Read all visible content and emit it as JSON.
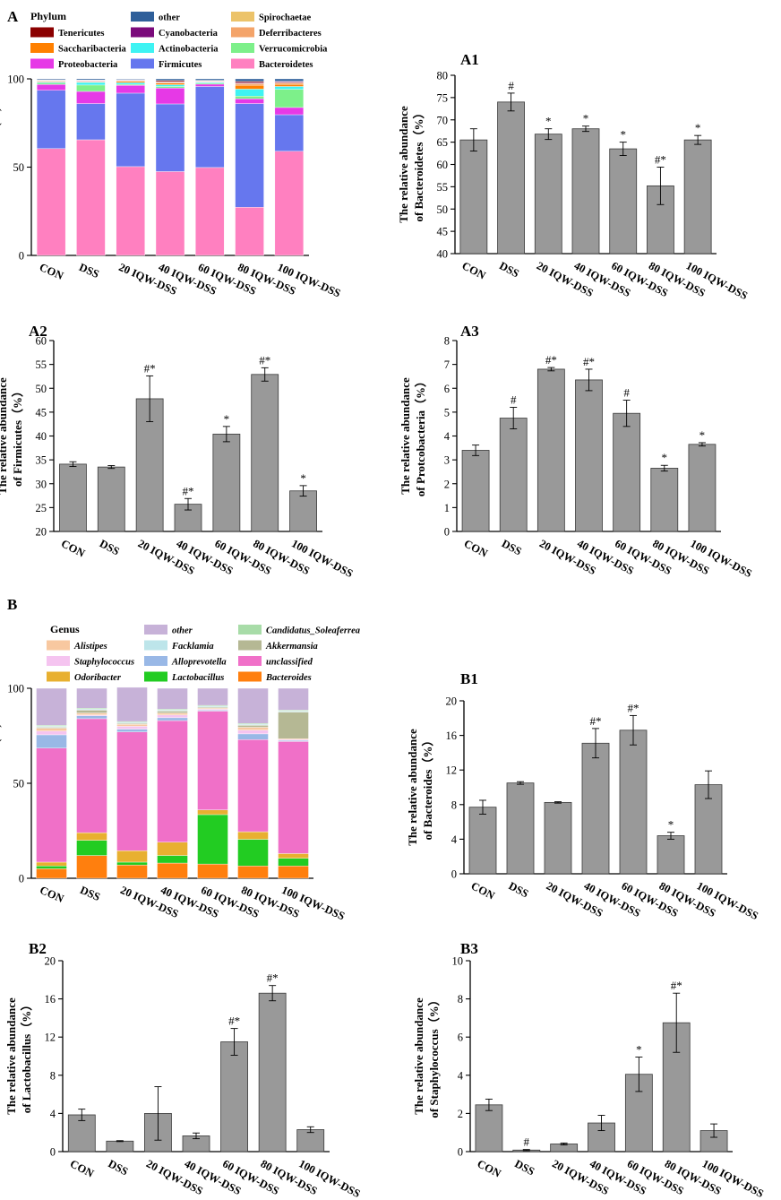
{
  "figure": {
    "panel_labels": {
      "A": "A",
      "B": "B"
    },
    "legend_titles": {
      "phylum": "Phylum",
      "genus": "Genus"
    }
  },
  "chart_data": [
    {
      "id": "A",
      "type": "bar",
      "stacked": true,
      "title": "",
      "ylabel": "Rclative Abundance(%)",
      "xlabel": "",
      "ylim": [
        0,
        100
      ],
      "yticks": [
        "0",
        "50",
        "100"
      ],
      "categories": [
        "CON",
        "DSS",
        "20 IQW-DSS",
        "40 IQW-DSS",
        "60 IQW-DSS",
        "80 IQW-DSS",
        "100 IQW-DSS"
      ],
      "legend_title": "Phylum",
      "legend_order": [
        "Tenericutes",
        "Saccharibacteria",
        "Proteobacteria",
        "other",
        "Cyanobacteria",
        "Actinobacteria",
        "Firmicutes",
        "Spirochaetae",
        "Deferribacteres",
        "Verrucomicrobia",
        "Bacteroidetes"
      ],
      "series": [
        {
          "name": "Bacteroidetes",
          "color": "#ff80c0",
          "values": [
            60.5,
            65.5,
            50.3,
            47.5,
            49.8,
            27.3,
            59.0
          ]
        },
        {
          "name": "Firmicutes",
          "color": "#6677ee",
          "values": [
            33.0,
            20.5,
            41.6,
            38.3,
            45.9,
            58.7,
            20.7
          ]
        },
        {
          "name": "Proteobacteria",
          "color": "#e639e6",
          "values": [
            3.3,
            6.9,
            4.4,
            9.0,
            1.3,
            2.7,
            4.1
          ]
        },
        {
          "name": "Verrucomicrobia",
          "color": "#7df08a",
          "values": [
            0.8,
            3.6,
            0.6,
            0.9,
            0.6,
            1.5,
            10.3
          ]
        },
        {
          "name": "Actinobacteria",
          "color": "#3ef3f3",
          "values": [
            0.6,
            1.5,
            1.0,
            1.0,
            0.5,
            4.0,
            1.6
          ]
        },
        {
          "name": "Saccharibacteria",
          "color": "#ff8000",
          "values": [
            0.4,
            0.3,
            0.7,
            1.0,
            0.3,
            2.2,
            1.2
          ]
        },
        {
          "name": "Deferribacteres",
          "color": "#f4a46a",
          "values": [
            0.3,
            0.4,
            0.4,
            0.3,
            0.3,
            1.0,
            0.9
          ]
        },
        {
          "name": "Cyanobacteria",
          "color": "#7b0a7b",
          "values": [
            0.3,
            0.3,
            0.3,
            0.3,
            0.2,
            0.4,
            0.5
          ]
        },
        {
          "name": "Tenericutes",
          "color": "#8b0000",
          "values": [
            0.2,
            0.2,
            0.2,
            0.7,
            0.2,
            0.7,
            0.3
          ]
        },
        {
          "name": "Spirochaetae",
          "color": "#ecc36a",
          "values": [
            0.1,
            0.2,
            0.1,
            0.1,
            0.1,
            0.1,
            0.1
          ]
        },
        {
          "name": "other",
          "color": "#2f5f9a",
          "values": [
            0.5,
            0.6,
            0.4,
            0.9,
            0.8,
            1.4,
            1.3
          ]
        }
      ]
    },
    {
      "id": "A1",
      "type": "bar",
      "title": "A1",
      "ylabel": [
        "The relative abundance",
        "of Bacteroidetes（%）"
      ],
      "ylim": [
        40,
        80
      ],
      "yticks": [
        "40",
        "45",
        "50",
        "55",
        "60",
        "65",
        "70",
        "75",
        "80"
      ],
      "categories": [
        "CON",
        "DSS",
        "20 IQW-DSS",
        "40 IQW-DSS",
        "60 IQW-DSS",
        "80 IQW-DSS",
        "100 IQW-DSS"
      ],
      "values": [
        65.5,
        74.0,
        66.8,
        68.0,
        63.5,
        55.2,
        65.5
      ],
      "errors": [
        2.5,
        2.0,
        1.2,
        0.6,
        1.5,
        4.2,
        1.0
      ],
      "annotations": [
        "",
        "#",
        "*",
        "*",
        "*",
        "#*",
        "*"
      ]
    },
    {
      "id": "A2",
      "type": "bar",
      "title": "A2",
      "ylabel": [
        "The relative abundance",
        "of Firmicutes（%）"
      ],
      "ylim": [
        20,
        60
      ],
      "yticks": [
        "20",
        "25",
        "30",
        "35",
        "40",
        "45",
        "50",
        "55",
        "60"
      ],
      "categories": [
        "CON",
        "DSS",
        "20 IQW-DSS",
        "40 IQW-DSS",
        "60 IQW-DSS",
        "80 IQW-DSS",
        "100 IQW-DSS"
      ],
      "values": [
        34.1,
        33.5,
        47.8,
        25.7,
        40.4,
        52.9,
        28.5
      ],
      "errors": [
        0.5,
        0.3,
        4.8,
        1.2,
        1.6,
        1.4,
        1.1
      ],
      "annotations": [
        "",
        "",
        "#*",
        "#*",
        "*",
        "#*",
        "*"
      ]
    },
    {
      "id": "A3",
      "type": "bar",
      "title": "A3",
      "ylabel": [
        "The relative abundance",
        "of Protcobacteria（%）"
      ],
      "ylim": [
        0,
        8
      ],
      "yticks": [
        "0",
        "1",
        "2",
        "3",
        "4",
        "5",
        "6",
        "7",
        "8"
      ],
      "categories": [
        "CON",
        "DSS",
        "20 IQW-DSS",
        "40 IQW-DSS",
        "60 IQW-DSS",
        "80 IQW-DSS",
        "100 IQW-DSS"
      ],
      "values": [
        3.4,
        4.75,
        6.8,
        6.35,
        4.95,
        2.65,
        3.65
      ],
      "errors": [
        0.22,
        0.45,
        0.07,
        0.45,
        0.55,
        0.12,
        0.07
      ],
      "annotations": [
        "",
        "#",
        "#*",
        "#*",
        "#",
        "*",
        "*"
      ]
    },
    {
      "id": "B",
      "type": "bar",
      "stacked": true,
      "title": "",
      "ylabel": "Relative Abundance(%)",
      "xlabel": "",
      "ylim": [
        0,
        100
      ],
      "yticks": [
        "0",
        "50",
        "100"
      ],
      "categories": [
        "CON",
        "DSS",
        "20 IQW-DSS",
        "40 IQW-DSS",
        "60 IQW-DSS",
        "80 IQW-DSS",
        "100 IQW-DSS"
      ],
      "legend_title": "Genus",
      "legend_order": [
        "Alistipes",
        "Staphylococcus",
        "Odoribacter",
        "other",
        "Facklamia",
        "Alloprevotella",
        "Lactobacillus",
        "Candidatus_Soleaferrea",
        "Akkermansia",
        "unclassified",
        "Bacteroides"
      ],
      "legend_italic": [
        "Alistipes",
        "Staphylococcus",
        "Odoribacter",
        "other",
        "Facklamia",
        "Alloprevotella",
        "Lactobacillus",
        "Candidatus_Soleaferrea",
        "Akkermansia",
        "unclassified",
        "Bacteroides"
      ],
      "series": [
        {
          "name": "Bacteroides",
          "color": "#ff7f0e",
          "values": [
            5.0,
            12.0,
            7.0,
            8.0,
            7.5,
            6.5,
            6.5
          ]
        },
        {
          "name": "Lactobacillus",
          "color": "#22cc22",
          "values": [
            1.5,
            8.0,
            1.5,
            4.0,
            26.0,
            14.0,
            4.0
          ]
        },
        {
          "name": "Odoribacter",
          "color": "#e8b030",
          "values": [
            2.0,
            4.0,
            6.0,
            7.0,
            2.5,
            4.0,
            2.5
          ]
        },
        {
          "name": "unclassified",
          "color": "#f070c8",
          "values": [
            60.0,
            60.0,
            62.5,
            64.0,
            52.0,
            48.5,
            59.0
          ]
        },
        {
          "name": "Alloprevotella",
          "color": "#99b8e6",
          "values": [
            7.0,
            1.5,
            1.5,
            1.5,
            0.5,
            3.0,
            0.5
          ]
        },
        {
          "name": "Staphylococcus",
          "color": "#f5c4f0",
          "values": [
            2.0,
            0.5,
            1.5,
            1.5,
            0.5,
            2.0,
            0.5
          ]
        },
        {
          "name": "Alistipes",
          "color": "#f8c8a0",
          "values": [
            1.5,
            1.0,
            1.0,
            1.0,
            0.5,
            1.5,
            0.5
          ]
        },
        {
          "name": "Akkermansia",
          "color": "#b5b894",
          "values": [
            0.5,
            1.5,
            0.5,
            1.0,
            0.5,
            1.0,
            14.0
          ]
        },
        {
          "name": "Facklamia",
          "color": "#bde5ea",
          "values": [
            0.5,
            0.5,
            0.5,
            0.5,
            0.5,
            0.5,
            0.5
          ]
        },
        {
          "name": "Candidatus_Soleaferrea",
          "color": "#a8dca8",
          "values": [
            0.5,
            0.5,
            0.5,
            0.5,
            0.5,
            0.5,
            0.5
          ]
        },
        {
          "name": "other",
          "color": "#c7b2d8",
          "values": [
            19.5,
            10.5,
            18.0,
            11.0,
            9.0,
            18.5,
            11.5
          ]
        }
      ]
    },
    {
      "id": "B1",
      "type": "bar",
      "title": "B1",
      "ylabel": [
        "The relative abundance",
        "of Bacteroides（%）"
      ],
      "ylim": [
        0,
        20
      ],
      "yticks": [
        "0",
        "4",
        "8",
        "12",
        "16",
        "20"
      ],
      "categories": [
        "CON",
        "DSS",
        "20 IQW-DSS",
        "40 IQW-DSS",
        "60 IQW-DSS",
        "80 IQW-DSS",
        "100 IQW-DSS"
      ],
      "values": [
        7.7,
        10.5,
        8.25,
        15.1,
        16.6,
        4.4,
        10.3
      ],
      "errors": [
        0.8,
        0.15,
        0.08,
        1.7,
        1.7,
        0.4,
        1.6
      ],
      "annotations": [
        "",
        "",
        "",
        "#*",
        "#*",
        "*",
        ""
      ]
    },
    {
      "id": "B2",
      "type": "bar",
      "title": "B2",
      "ylabel": [
        "The relative abundance",
        "of Lactobacillus（%）"
      ],
      "ylim": [
        0,
        20
      ],
      "yticks": [
        "0",
        "4",
        "8",
        "12",
        "16",
        "20"
      ],
      "categories": [
        "CON",
        "DSS",
        "20 IQW-DSS",
        "40 IQW-DSS",
        "60 IQW-DSS",
        "80 IQW-DSS",
        "100 IQW-DSS"
      ],
      "values": [
        3.85,
        1.1,
        4.0,
        1.65,
        11.5,
        16.6,
        2.3
      ],
      "errors": [
        0.6,
        0.05,
        2.8,
        0.3,
        1.4,
        0.8,
        0.3
      ],
      "annotations": [
        "",
        "",
        "",
        "",
        "#*",
        "#*",
        ""
      ]
    },
    {
      "id": "B3",
      "type": "bar",
      "title": "B3",
      "ylabel": [
        "The relative abundance",
        "of Staphylococcus（%）"
      ],
      "ylim": [
        0,
        10
      ],
      "yticks": [
        "0",
        "2",
        "4",
        "6",
        "8",
        "10"
      ],
      "categories": [
        "CON",
        "DSS",
        "20 IQW-DSS",
        "40 IQW-DSS",
        "60 IQW-DSS",
        "80 IQW-DSS",
        "100 IQW-DSS"
      ],
      "values": [
        2.45,
        0.08,
        0.4,
        1.5,
        4.05,
        6.75,
        1.1
      ],
      "errors": [
        0.3,
        0.03,
        0.05,
        0.4,
        0.9,
        1.55,
        0.35
      ],
      "annotations": [
        "",
        "#",
        "",
        "",
        "*",
        "#*",
        ""
      ]
    }
  ]
}
